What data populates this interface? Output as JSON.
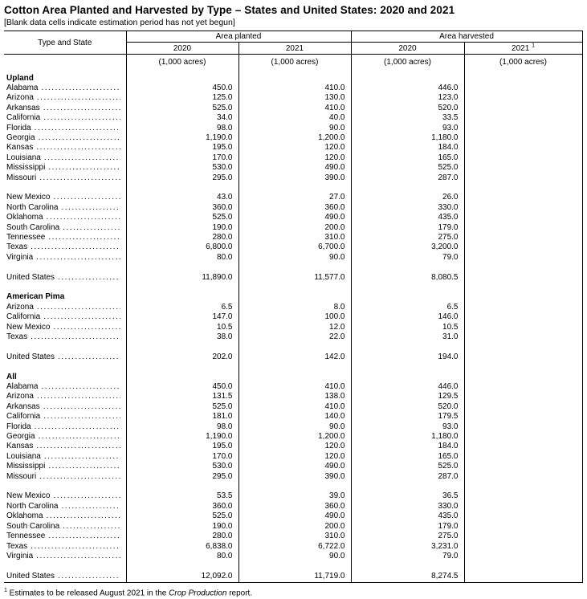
{
  "page": {
    "title": "Cotton Area Planted and Harvested by Type – States and United States: 2020 and 2021",
    "note": "[Blank data cells indicate estimation period has not yet begun]"
  },
  "table": {
    "stub_header": "Type and State",
    "col_groups": [
      {
        "label": "Area planted"
      },
      {
        "label": "Area harvested"
      }
    ],
    "year_cols": [
      {
        "label": "2020",
        "sup": ""
      },
      {
        "label": "2021",
        "sup": ""
      },
      {
        "label": "2020",
        "sup": ""
      },
      {
        "label": "2021",
        "sup": "1"
      }
    ],
    "unit_label": "(1,000 acres)",
    "sections": [
      {
        "name": "Upland",
        "blocks": [
          {
            "rows": [
              {
                "state": "Alabama",
                "values": [
                  "450.0",
                  "410.0",
                  "446.0",
                  ""
                ]
              },
              {
                "state": "Arizona",
                "values": [
                  "125.0",
                  "130.0",
                  "123.0",
                  ""
                ]
              },
              {
                "state": "Arkansas",
                "values": [
                  "525.0",
                  "410.0",
                  "520.0",
                  ""
                ]
              },
              {
                "state": "California",
                "values": [
                  "34.0",
                  "40.0",
                  "33.5",
                  ""
                ]
              },
              {
                "state": "Florida",
                "values": [
                  "98.0",
                  "90.0",
                  "93.0",
                  ""
                ]
              },
              {
                "state": "Georgia",
                "values": [
                  "1,190.0",
                  "1,200.0",
                  "1,180.0",
                  ""
                ]
              },
              {
                "state": "Kansas",
                "values": [
                  "195.0",
                  "120.0",
                  "184.0",
                  ""
                ]
              },
              {
                "state": "Louisiana",
                "values": [
                  "170.0",
                  "120.0",
                  "165.0",
                  ""
                ]
              },
              {
                "state": "Mississippi",
                "values": [
                  "530.0",
                  "490.0",
                  "525.0",
                  ""
                ]
              },
              {
                "state": "Missouri",
                "values": [
                  "295.0",
                  "390.0",
                  "287.0",
                  ""
                ]
              }
            ]
          },
          {
            "rows": [
              {
                "state": "New Mexico",
                "values": [
                  "43.0",
                  "27.0",
                  "26.0",
                  ""
                ]
              },
              {
                "state": "North Carolina",
                "values": [
                  "360.0",
                  "360.0",
                  "330.0",
                  ""
                ]
              },
              {
                "state": "Oklahoma",
                "values": [
                  "525.0",
                  "490.0",
                  "435.0",
                  ""
                ]
              },
              {
                "state": "South Carolina",
                "values": [
                  "190.0",
                  "200.0",
                  "179.0",
                  ""
                ]
              },
              {
                "state": "Tennessee",
                "values": [
                  "280.0",
                  "310.0",
                  "275.0",
                  ""
                ]
              },
              {
                "state": "Texas",
                "values": [
                  "6,800.0",
                  "6,700.0",
                  "3,200.0",
                  ""
                ]
              },
              {
                "state": "Virginia",
                "values": [
                  "80.0",
                  "90.0",
                  "79.0",
                  ""
                ]
              }
            ]
          }
        ],
        "total": {
          "state": "United States",
          "values": [
            "11,890.0",
            "11,577.0",
            "8,080.5",
            ""
          ]
        }
      },
      {
        "name": "American Pima",
        "blocks": [
          {
            "rows": [
              {
                "state": "Arizona",
                "values": [
                  "6.5",
                  "8.0",
                  "6.5",
                  ""
                ]
              },
              {
                "state": "California",
                "values": [
                  "147.0",
                  "100.0",
                  "146.0",
                  ""
                ]
              },
              {
                "state": "New Mexico",
                "values": [
                  "10.5",
                  "12.0",
                  "10.5",
                  ""
                ]
              },
              {
                "state": "Texas",
                "values": [
                  "38.0",
                  "22.0",
                  "31.0",
                  ""
                ]
              }
            ]
          }
        ],
        "total": {
          "state": "United States",
          "values": [
            "202.0",
            "142.0",
            "194.0",
            ""
          ]
        }
      },
      {
        "name": "All",
        "blocks": [
          {
            "rows": [
              {
                "state": "Alabama",
                "values": [
                  "450.0",
                  "410.0",
                  "446.0",
                  ""
                ]
              },
              {
                "state": "Arizona",
                "values": [
                  "131.5",
                  "138.0",
                  "129.5",
                  ""
                ]
              },
              {
                "state": "Arkansas",
                "values": [
                  "525.0",
                  "410.0",
                  "520.0",
                  ""
                ]
              },
              {
                "state": "California",
                "values": [
                  "181.0",
                  "140.0",
                  "179.5",
                  ""
                ]
              },
              {
                "state": "Florida",
                "values": [
                  "98.0",
                  "90.0",
                  "93.0",
                  ""
                ]
              },
              {
                "state": "Georgia",
                "values": [
                  "1,190.0",
                  "1,200.0",
                  "1,180.0",
                  ""
                ]
              },
              {
                "state": "Kansas",
                "values": [
                  "195.0",
                  "120.0",
                  "184.0",
                  ""
                ]
              },
              {
                "state": "Louisiana",
                "values": [
                  "170.0",
                  "120.0",
                  "165.0",
                  ""
                ]
              },
              {
                "state": "Mississippi",
                "values": [
                  "530.0",
                  "490.0",
                  "525.0",
                  ""
                ]
              },
              {
                "state": "Missouri",
                "values": [
                  "295.0",
                  "390.0",
                  "287.0",
                  ""
                ]
              }
            ]
          },
          {
            "rows": [
              {
                "state": "New Mexico",
                "values": [
                  "53.5",
                  "39.0",
                  "36.5",
                  ""
                ]
              },
              {
                "state": "North Carolina",
                "values": [
                  "360.0",
                  "360.0",
                  "330.0",
                  ""
                ]
              },
              {
                "state": "Oklahoma",
                "values": [
                  "525.0",
                  "490.0",
                  "435.0",
                  ""
                ]
              },
              {
                "state": "South Carolina",
                "values": [
                  "190.0",
                  "200.0",
                  "179.0",
                  ""
                ]
              },
              {
                "state": "Tennessee",
                "values": [
                  "280.0",
                  "310.0",
                  "275.0",
                  ""
                ]
              },
              {
                "state": "Texas",
                "values": [
                  "6,838.0",
                  "6,722.0",
                  "3,231.0",
                  ""
                ]
              },
              {
                "state": "Virginia",
                "values": [
                  "80.0",
                  "90.0",
                  "79.0",
                  ""
                ]
              }
            ]
          }
        ],
        "total": {
          "state": "United States",
          "values": [
            "12,092.0",
            "11,719.0",
            "8,274.5",
            ""
          ]
        }
      }
    ]
  },
  "footnote": {
    "sup": "1",
    "text_before_italic": " Estimates to be released August 2021 in the ",
    "italic": "Crop Production",
    "text_after_italic": " report."
  }
}
